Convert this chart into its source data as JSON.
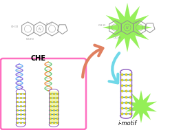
{
  "che_label": "CHE",
  "imotif_label": "i-motif",
  "arrow_up_color": "#E08060",
  "arrow_down_color": "#70D8E8",
  "glow_color": "#88EE44",
  "box_color": "#FF70C0",
  "bg_color": "#FFFFFF",
  "molecule_color": "#909090",
  "imotif_spine_color": "#9060C0",
  "imotif_rung_color": "#4090D0",
  "imotif_dot_color": "#F0E020",
  "star_color": "#88EE44",
  "helix_blue1": "#60A8F8",
  "helix_blue2": "#8060E0",
  "helix_green": "#60C870",
  "helix_orange": "#F08830"
}
